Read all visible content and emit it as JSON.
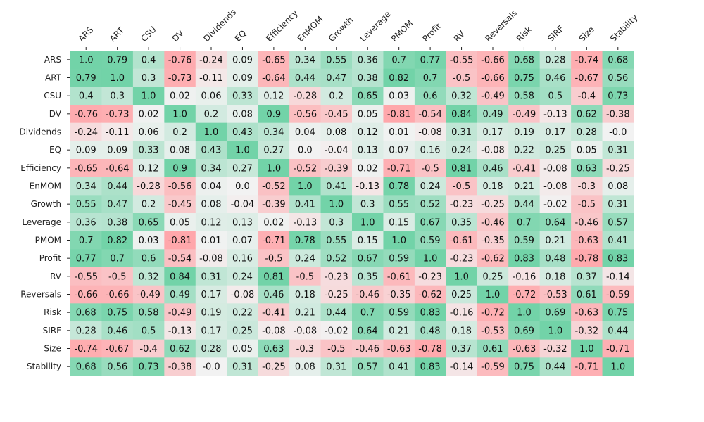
{
  "chart_data": {
    "type": "heatmap",
    "title": "",
    "xlabel": "",
    "ylabel": "",
    "x_axis_position": "top",
    "x_tick_rotation_deg": -45,
    "colorbar": false,
    "grid": false,
    "colors": {
      "negative": "#ffa7ab",
      "neutral": "#f2f2f2",
      "positive": "#72d3a8",
      "text": "#111111"
    },
    "color_range": [
      -0.8,
      0.8
    ],
    "labels": [
      "ARS",
      "ART",
      "CSU",
      "DV",
      "Dividends",
      "EQ",
      "Efficiency",
      "EnMOM",
      "Growth",
      "Leverage",
      "PMOM",
      "Profit",
      "RV",
      "Reversals",
      "Risk",
      "SIRF",
      "Size",
      "Stability"
    ],
    "values": [
      [
        "1.0",
        "0.79",
        "0.4",
        "-0.76",
        "-0.24",
        "0.09",
        "-0.65",
        "0.34",
        "0.55",
        "0.36",
        "0.7",
        "0.77",
        "-0.55",
        "-0.66",
        "0.68",
        "0.28",
        "-0.74",
        "0.68"
      ],
      [
        "0.79",
        "1.0",
        "0.3",
        "-0.73",
        "-0.11",
        "0.09",
        "-0.64",
        "0.44",
        "0.47",
        "0.38",
        "0.82",
        "0.7",
        "-0.5",
        "-0.66",
        "0.75",
        "0.46",
        "-0.67",
        "0.56"
      ],
      [
        "0.4",
        "0.3",
        "1.0",
        "0.02",
        "0.06",
        "0.33",
        "0.12",
        "-0.28",
        "0.2",
        "0.65",
        "0.03",
        "0.6",
        "0.32",
        "-0.49",
        "0.58",
        "0.5",
        "-0.4",
        "0.73"
      ],
      [
        "-0.76",
        "-0.73",
        "0.02",
        "1.0",
        "0.2",
        "0.08",
        "0.9",
        "-0.56",
        "-0.45",
        "0.05",
        "-0.81",
        "-0.54",
        "0.84",
        "0.49",
        "-0.49",
        "-0.13",
        "0.62",
        "-0.38"
      ],
      [
        "-0.24",
        "-0.11",
        "0.06",
        "0.2",
        "1.0",
        "0.43",
        "0.34",
        "0.04",
        "0.08",
        "0.12",
        "0.01",
        "-0.08",
        "0.31",
        "0.17",
        "0.19",
        "0.17",
        "0.28",
        "-0.0"
      ],
      [
        "0.09",
        "0.09",
        "0.33",
        "0.08",
        "0.43",
        "1.0",
        "0.27",
        "0.0",
        "-0.04",
        "0.13",
        "0.07",
        "0.16",
        "0.24",
        "-0.08",
        "0.22",
        "0.25",
        "0.05",
        "0.31"
      ],
      [
        "-0.65",
        "-0.64",
        "0.12",
        "0.9",
        "0.34",
        "0.27",
        "1.0",
        "-0.52",
        "-0.39",
        "0.02",
        "-0.71",
        "-0.5",
        "0.81",
        "0.46",
        "-0.41",
        "-0.08",
        "0.63",
        "-0.25"
      ],
      [
        "0.34",
        "0.44",
        "-0.28",
        "-0.56",
        "0.04",
        "0.0",
        "-0.52",
        "1.0",
        "0.41",
        "-0.13",
        "0.78",
        "0.24",
        "-0.5",
        "0.18",
        "0.21",
        "-0.08",
        "-0.3",
        "0.08"
      ],
      [
        "0.55",
        "0.47",
        "0.2",
        "-0.45",
        "0.08",
        "-0.04",
        "-0.39",
        "0.41",
        "1.0",
        "0.3",
        "0.55",
        "0.52",
        "-0.23",
        "-0.25",
        "0.44",
        "-0.02",
        "-0.5",
        "0.31"
      ],
      [
        "0.36",
        "0.38",
        "0.65",
        "0.05",
        "0.12",
        "0.13",
        "0.02",
        "-0.13",
        "0.3",
        "1.0",
        "0.15",
        "0.67",
        "0.35",
        "-0.46",
        "0.7",
        "0.64",
        "-0.46",
        "0.57"
      ],
      [
        "0.7",
        "0.82",
        "0.03",
        "-0.81",
        "0.01",
        "0.07",
        "-0.71",
        "0.78",
        "0.55",
        "0.15",
        "1.0",
        "0.59",
        "-0.61",
        "-0.35",
        "0.59",
        "0.21",
        "-0.63",
        "0.41"
      ],
      [
        "0.77",
        "0.7",
        "0.6",
        "-0.54",
        "-0.08",
        "0.16",
        "-0.5",
        "0.24",
        "0.52",
        "0.67",
        "0.59",
        "1.0",
        "-0.23",
        "-0.62",
        "0.83",
        "0.48",
        "-0.78",
        "0.83"
      ],
      [
        "-0.55",
        "-0.5",
        "0.32",
        "0.84",
        "0.31",
        "0.24",
        "0.81",
        "-0.5",
        "-0.23",
        "0.35",
        "-0.61",
        "-0.23",
        "1.0",
        "0.25",
        "-0.16",
        "0.18",
        "0.37",
        "-0.14"
      ],
      [
        "-0.66",
        "-0.66",
        "-0.49",
        "0.49",
        "0.17",
        "-0.08",
        "0.46",
        "0.18",
        "-0.25",
        "-0.46",
        "-0.35",
        "-0.62",
        "0.25",
        "1.0",
        "-0.72",
        "-0.53",
        "0.61",
        "-0.59"
      ],
      [
        "0.68",
        "0.75",
        "0.58",
        "-0.49",
        "0.19",
        "0.22",
        "-0.41",
        "0.21",
        "0.44",
        "0.7",
        "0.59",
        "0.83",
        "-0.16",
        "-0.72",
        "1.0",
        "0.69",
        "-0.63",
        "0.75"
      ],
      [
        "0.28",
        "0.46",
        "0.5",
        "-0.13",
        "0.17",
        "0.25",
        "-0.08",
        "-0.08",
        "-0.02",
        "0.64",
        "0.21",
        "0.48",
        "0.18",
        "-0.53",
        "0.69",
        "1.0",
        "-0.32",
        "0.44"
      ],
      [
        "-0.74",
        "-0.67",
        "-0.4",
        "0.62",
        "0.28",
        "0.05",
        "0.63",
        "-0.3",
        "-0.5",
        "-0.46",
        "-0.63",
        "-0.78",
        "0.37",
        "0.61",
        "-0.63",
        "-0.32",
        "1.0",
        "-0.71"
      ],
      [
        "0.68",
        "0.56",
        "0.73",
        "-0.38",
        "-0.0",
        "0.31",
        "-0.25",
        "0.08",
        "0.31",
        "0.57",
        "0.41",
        "0.83",
        "-0.14",
        "-0.59",
        "0.75",
        "0.44",
        "-0.71",
        "1.0"
      ]
    ]
  }
}
